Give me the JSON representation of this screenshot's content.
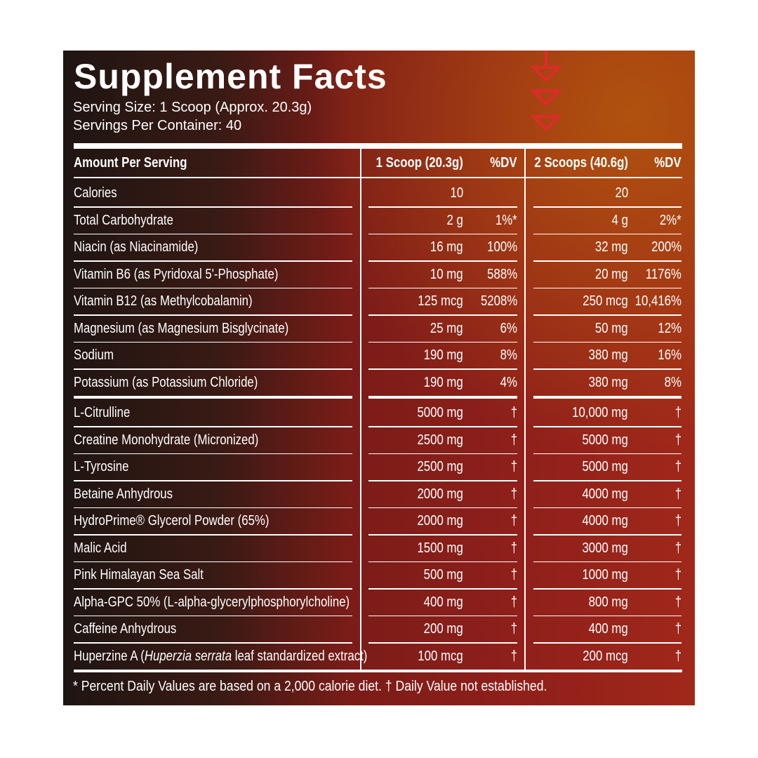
{
  "header": {
    "title": "Supplement Facts",
    "serving_size": "Serving Size: 1 Scoop (Approx. 20.3g)",
    "servings_per_container": "Servings Per Container: 40"
  },
  "table": {
    "columns": [
      "Amount Per Serving",
      "1 Scoop (20.3g)",
      "%DV",
      "2 Scoops (40.6g)",
      "%DV"
    ],
    "sections": [
      {
        "rows": [
          {
            "name": "Calories",
            "amount_1": "10",
            "amount_2": "20"
          },
          {
            "name": "Total Carbohydrate",
            "amount_1": "2 g",
            "dv_1": "1%*",
            "amount_2": "4 g",
            "dv_2": "2%*"
          },
          {
            "name": "Niacin (as Niacinamide)",
            "amount_1": "16 mg",
            "dv_1": "100%",
            "amount_2": "32 mg",
            "dv_2": "200%"
          },
          {
            "name": "Vitamin B6 (as Pyridoxal 5'-Phosphate)",
            "amount_1": "10 mg",
            "dv_1": "588%",
            "amount_2": "20 mg",
            "dv_2": "1176%"
          },
          {
            "name": "Vitamin B12 (as Methylcobalamin)",
            "amount_1": "125 mcg",
            "dv_1": "5208%",
            "amount_2": "250 mcg",
            "dv_2": "10,416%"
          },
          {
            "name": "Magnesium (as Magnesium Bisglycinate)",
            "amount_1": "25 mg",
            "dv_1": "6%",
            "amount_2": "50 mg",
            "dv_2": "12%"
          },
          {
            "name": "Sodium",
            "amount_1": "190 mg",
            "dv_1": "8%",
            "amount_2": "380 mg",
            "dv_2": "16%"
          },
          {
            "name": "Potassium (as Potassium Chloride)",
            "amount_1": "190 mg",
            "dv_1": "4%",
            "amount_2": "380 mg",
            "dv_2": "8%"
          }
        ]
      },
      {
        "rows": [
          {
            "name": "L-Citrulline",
            "amount_1": "5000 mg",
            "dv_1": "†",
            "amount_2": "10,000 mg",
            "dv_2": "†"
          },
          {
            "name": "Creatine Monohydrate (Micronized)",
            "amount_1": "2500 mg",
            "dv_1": "†",
            "amount_2": "5000 mg",
            "dv_2": "†"
          },
          {
            "name": "L-Tyrosine",
            "amount_1": "2500 mg",
            "dv_1": "†",
            "amount_2": "5000 mg",
            "dv_2": "†"
          },
          {
            "name": "Betaine Anhydrous",
            "amount_1": "2000 mg",
            "dv_1": "†",
            "amount_2": "4000 mg",
            "dv_2": "†"
          },
          {
            "name": "HydroPrime® Glycerol Powder (65%)",
            "amount_1": "2000 mg",
            "dv_1": "†",
            "amount_2": "4000 mg",
            "dv_2": "†"
          },
          {
            "name": "Malic Acid",
            "amount_1": "1500 mg",
            "dv_1": "†",
            "amount_2": "3000 mg",
            "dv_2": "†"
          },
          {
            "name": "Pink Himalayan Sea Salt",
            "amount_1": "500 mg",
            "dv_1": "†",
            "amount_2": "1000 mg",
            "dv_2": "†"
          },
          {
            "name": "Alpha-GPC 50% (L-alpha-glycerylphosphorylcholine)",
            "amount_1": "400 mg",
            "dv_1": "†",
            "amount_2": "800 mg",
            "dv_2": "†"
          },
          {
            "name": "Caffeine Anhydrous",
            "amount_1": "200 mg",
            "dv_1": "†",
            "amount_2": "400 mg",
            "dv_2": "†"
          },
          {
            "name": [
              {
                "text": "Huperzine A ("
              },
              {
                "text": "Huperzia serrata",
                "italic": true
              },
              {
                "text": " leaf standardized extract)"
              }
            ],
            "amount_1": "100 mcg",
            "dv_1": "†",
            "amount_2": "200 mcg",
            "dv_2": "†"
          }
        ]
      }
    ]
  },
  "footnote": "* Percent Daily Values are based on a 2,000 calorie diet. † Daily Value not established."
}
